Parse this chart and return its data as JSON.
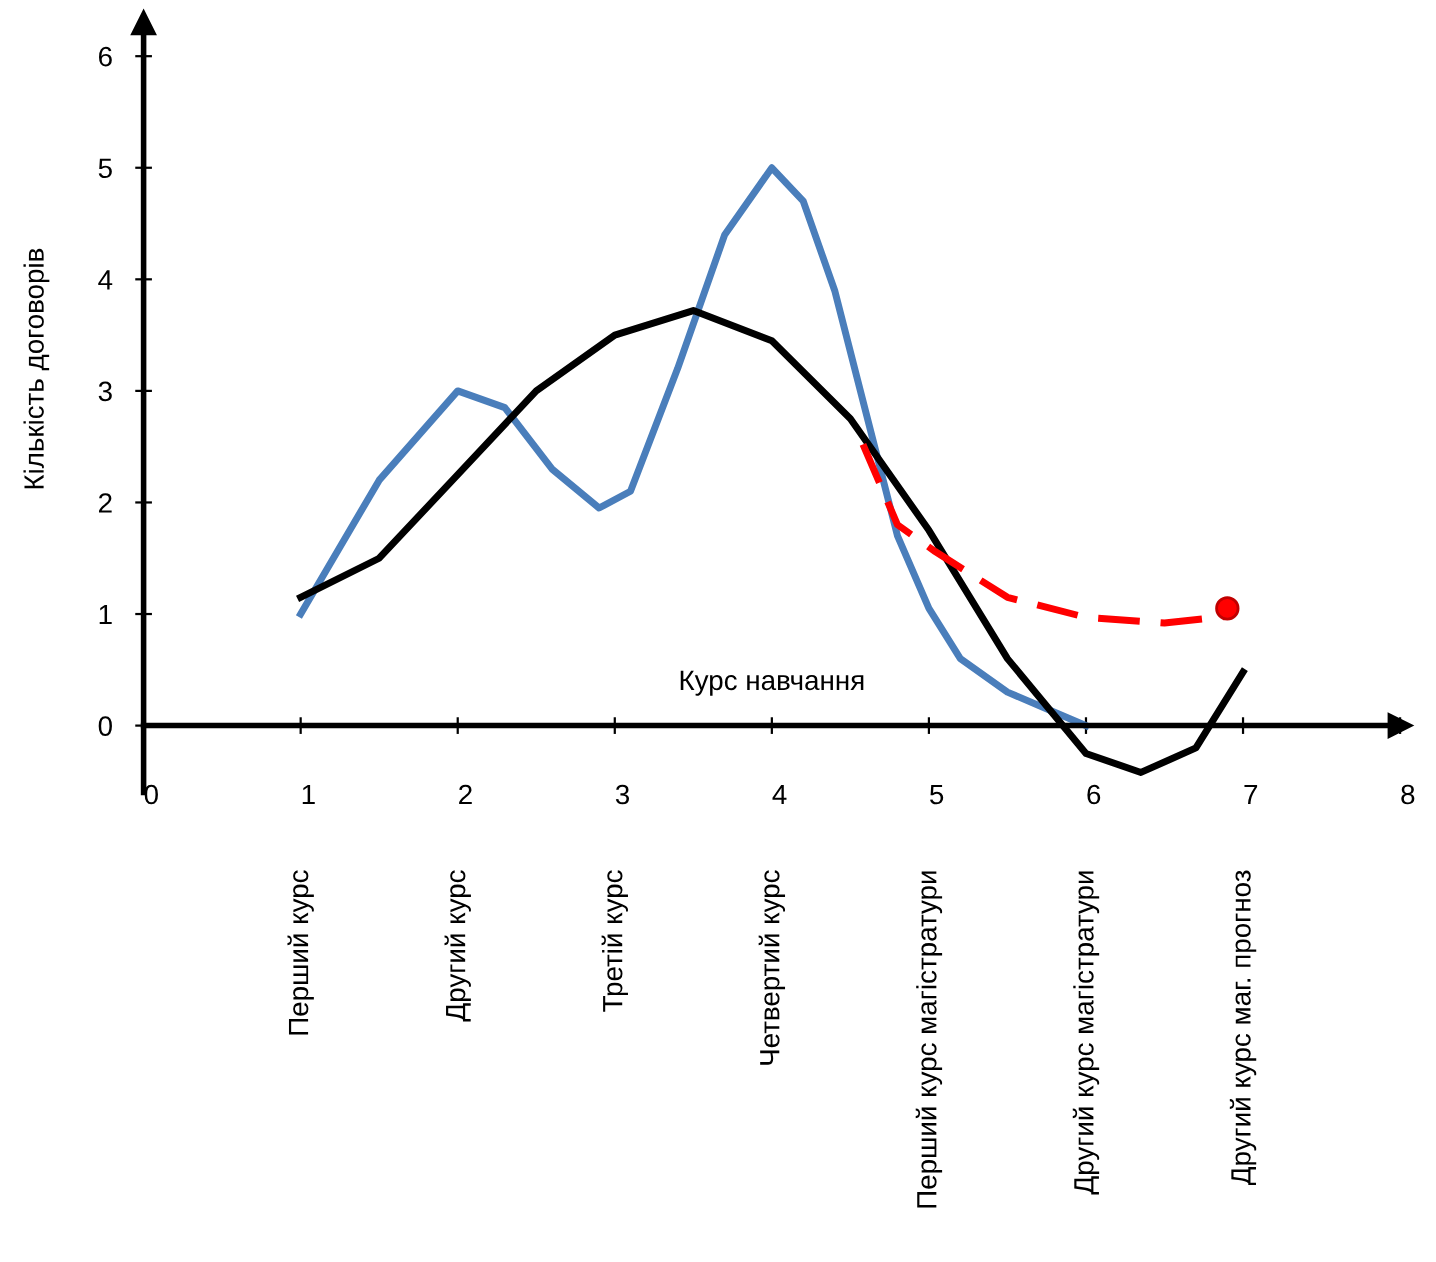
{
  "chart_data": {
    "type": "line",
    "ylabel": "Кількість договорів",
    "xlabel": "Курс навчання",
    "xlim": [
      0,
      8
    ],
    "xticks": [
      0,
      1,
      2,
      3,
      4,
      5,
      6,
      7,
      8
    ],
    "ylim": [
      -0.6,
      6.3
    ],
    "yticks": [
      0,
      1,
      2,
      3,
      4,
      5,
      6
    ],
    "annotations": [
      "Перший курс",
      "Другий курс",
      "Третій курс",
      "Четвертий курс",
      "Перший курс магістратури",
      "Другий курс магістратури",
      "Другий курс маг. прогноз"
    ],
    "grid": false,
    "legend": false,
    "series": [
      {
        "color": "#4a7ebb",
        "line_style": "solid",
        "x": [
          1,
          1.5,
          2,
          2.3,
          2.6,
          2.9,
          3.1,
          3.4,
          3.7,
          4,
          4.2,
          4.4,
          4.6,
          4.8,
          5,
          5.2,
          5.5,
          5.8,
          6
        ],
        "values": [
          1.0,
          2.2,
          3.0,
          2.85,
          2.3,
          1.95,
          2.1,
          3.2,
          4.4,
          5.0,
          4.7,
          3.9,
          2.8,
          1.7,
          1.05,
          0.6,
          0.3,
          0.12,
          0.0
        ]
      },
      {
        "color": "#000000",
        "line_style": "solid",
        "x": [
          1,
          1.5,
          2,
          2.5,
          3,
          3.5,
          4,
          4.5,
          5,
          5.5,
          6,
          6.35,
          6.7,
          7
        ],
        "values": [
          1.15,
          1.5,
          2.25,
          3.0,
          3.5,
          3.72,
          3.45,
          2.75,
          1.75,
          0.6,
          -0.25,
          -0.42,
          -0.2,
          0.48
        ]
      },
      {
        "color": "#ff0000",
        "line_style": "dashed",
        "x": [
          4.58,
          4.8,
          5.04,
          5.5,
          6,
          6.5,
          6.9
        ],
        "values": [
          2.52,
          1.8,
          1.56,
          1.15,
          0.97,
          0.92,
          0.98
        ]
      },
      {
        "type": "scatter",
        "color": "#ff0000",
        "marker": "circle",
        "x": [
          6.9
        ],
        "values": [
          1.05
        ]
      }
    ]
  }
}
